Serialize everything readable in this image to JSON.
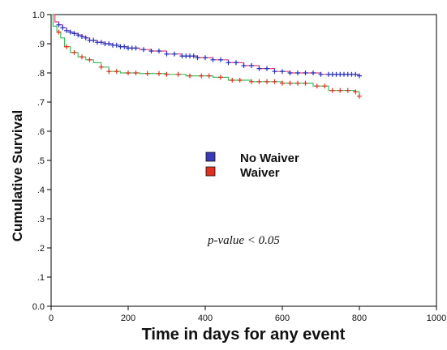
{
  "chart_data": {
    "type": "line",
    "subtype": "kaplan-meier step",
    "xlabel": "Time in days for any event",
    "ylabel": "Cumulative Survival",
    "xlim": [
      0,
      1000
    ],
    "ylim": [
      0.0,
      1.0
    ],
    "x_ticks": [
      "0",
      "200",
      "400",
      "600",
      "800",
      "1000"
    ],
    "y_ticks": [
      "0.0",
      ".1",
      ".2",
      ".3",
      ".4",
      ".5",
      ".6",
      ".7",
      ".8",
      ".9",
      "1.0"
    ],
    "annotation": "p-value < 0.05",
    "legend_position": "center",
    "grid": false,
    "series": [
      {
        "name": "No Waiver",
        "line_color": "#e0407a",
        "censor_color": "#2030c0",
        "legend_color": "#3a3ab8",
        "x": [
          0,
          10,
          20,
          30,
          40,
          50,
          60,
          70,
          80,
          90,
          100,
          120,
          140,
          160,
          180,
          200,
          230,
          260,
          300,
          340,
          380,
          420,
          460,
          500,
          540,
          580,
          620,
          700,
          800
        ],
        "y": [
          1.0,
          0.975,
          0.965,
          0.955,
          0.945,
          0.94,
          0.935,
          0.93,
          0.925,
          0.92,
          0.912,
          0.905,
          0.9,
          0.895,
          0.89,
          0.885,
          0.88,
          0.875,
          0.865,
          0.858,
          0.852,
          0.845,
          0.835,
          0.825,
          0.815,
          0.805,
          0.8,
          0.795,
          0.79
        ],
        "censor_x": [
          20,
          30,
          40,
          50,
          60,
          70,
          80,
          90,
          100,
          110,
          120,
          130,
          140,
          150,
          160,
          170,
          180,
          190,
          200,
          210,
          220,
          240,
          260,
          280,
          300,
          320,
          340,
          350,
          360,
          370,
          380,
          400,
          420,
          440,
          460,
          480,
          500,
          520,
          540,
          560,
          580,
          600,
          620,
          640,
          660,
          680,
          700,
          720,
          730,
          740,
          750,
          760,
          770,
          780,
          790,
          800
        ]
      },
      {
        "name": "Waiver",
        "line_color": "#3cc060",
        "censor_color": "#e03020",
        "legend_color": "#e03020",
        "x": [
          0,
          5,
          15,
          25,
          35,
          50,
          70,
          90,
          110,
          130,
          150,
          180,
          230,
          300,
          350,
          420,
          460,
          520,
          600,
          680,
          720,
          790,
          800
        ],
        "y": [
          1.0,
          0.96,
          0.94,
          0.92,
          0.89,
          0.87,
          0.855,
          0.845,
          0.835,
          0.82,
          0.805,
          0.8,
          0.798,
          0.795,
          0.79,
          0.785,
          0.775,
          0.77,
          0.765,
          0.755,
          0.74,
          0.735,
          0.72
        ],
        "censor_x": [
          20,
          40,
          60,
          80,
          100,
          130,
          150,
          170,
          200,
          220,
          250,
          280,
          300,
          330,
          360,
          390,
          410,
          440,
          470,
          490,
          520,
          540,
          560,
          580,
          600,
          620,
          640,
          660,
          690,
          710,
          730,
          750,
          770,
          790,
          800
        ]
      }
    ]
  }
}
